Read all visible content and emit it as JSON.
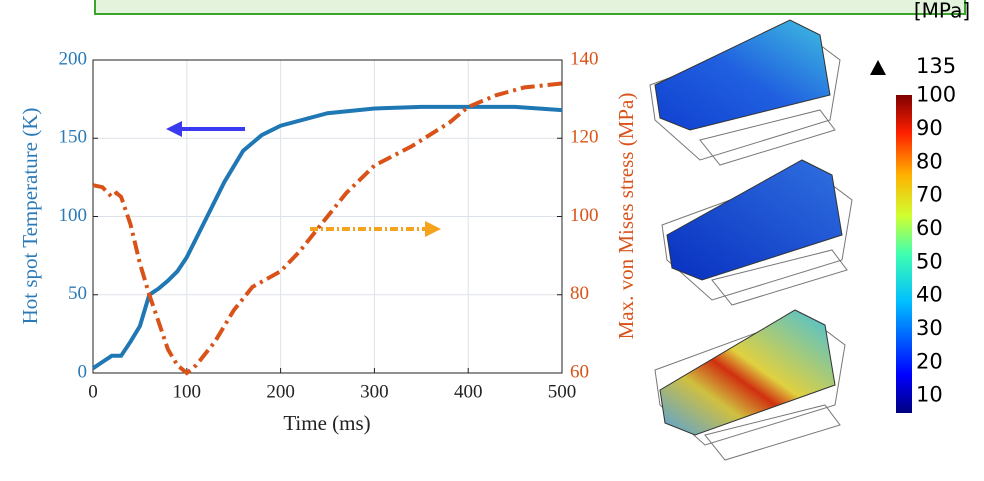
{
  "chart_data": {
    "type": "line",
    "xlabel": "Time (ms)",
    "ylabel": "Hot spot Temperature (K)",
    "y2label": "Max. von Mises stress (MPa)",
    "xlim": [
      0,
      500
    ],
    "xticks": [
      0,
      100,
      200,
      300,
      400,
      500
    ],
    "ylim": [
      0,
      200
    ],
    "yticks": [
      0,
      50,
      100,
      150,
      200
    ],
    "y2lim": [
      60,
      140
    ],
    "y2ticks": [
      60,
      80,
      100,
      120,
      140
    ],
    "grid": true,
    "series": [
      {
        "color": "#1f77b4",
        "x": [
          0,
          10,
          20,
          30,
          40,
          50,
          60,
          70,
          80,
          90,
          100,
          120,
          140,
          160,
          180,
          200,
          250,
          300,
          350,
          400,
          450,
          500
        ],
        "values": [
          3,
          7,
          11,
          11,
          20,
          30,
          50,
          54,
          59,
          65,
          74,
          98,
          122,
          142,
          152,
          158,
          166,
          169,
          170,
          170,
          170,
          168
        ]
      },
      {
        "color": "#d95319",
        "axis": "y2",
        "x": [
          0,
          10,
          20,
          25,
          30,
          40,
          50,
          60,
          70,
          80,
          90,
          100,
          110,
          130,
          150,
          170,
          200,
          220,
          250,
          270,
          300,
          340,
          380,
          400,
          430,
          460,
          500
        ],
        "values": [
          108,
          107.5,
          105,
          106,
          105,
          98,
          88,
          80,
          73,
          66,
          62,
          60,
          62,
          68,
          76,
          82,
          86,
          91,
          100,
          106,
          113,
          118,
          124,
          128,
          131,
          133,
          134
        ]
      }
    ]
  },
  "colorbar": {
    "unit": "[MPa]",
    "max_label": "135",
    "ticks": [
      100,
      90,
      80,
      70,
      60,
      50,
      40,
      30,
      20,
      10
    ]
  }
}
